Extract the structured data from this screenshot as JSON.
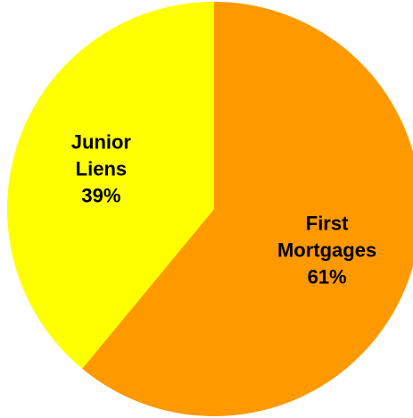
{
  "chart_data": {
    "type": "pie",
    "title": "",
    "start_angle_deg": 0,
    "direction": "clockwise",
    "slices": [
      {
        "label_lines": [
          "First",
          "Mortgages",
          "61%"
        ],
        "value": 61,
        "color": "#FF9900"
      },
      {
        "label_lines": [
          "Junior",
          "Liens",
          "39%"
        ],
        "value": 39,
        "color": "#FFFF00"
      }
    ]
  }
}
